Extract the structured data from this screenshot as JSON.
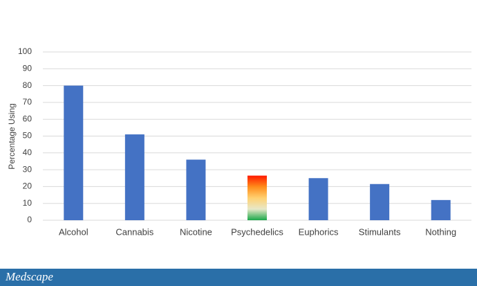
{
  "chart_data": {
    "type": "bar",
    "y_label": "Percentage Using",
    "categories": [
      "Alcohol",
      "Cannabis",
      "Nicotine",
      "Psychedelics",
      "Euphorics",
      "Stimulants",
      "Nothing"
    ],
    "values": [
      80,
      51,
      36,
      26.5,
      25,
      21.5,
      12
    ],
    "colors": [
      "#4472c4",
      "#4472c4",
      "#4472c4",
      [
        "#ff1a00",
        "#ff8c1a",
        "#ffd070",
        "#e8e8c8",
        "#1aa84a"
      ],
      "#4472c4",
      "#4472c4",
      "#4472c4"
    ],
    "ylim": [
      0,
      100
    ],
    "yticks": [
      0,
      10,
      20,
      30,
      40,
      50,
      60,
      70,
      80,
      90,
      100
    ],
    "grid": true
  },
  "footer": {
    "brand": "Medscape"
  }
}
